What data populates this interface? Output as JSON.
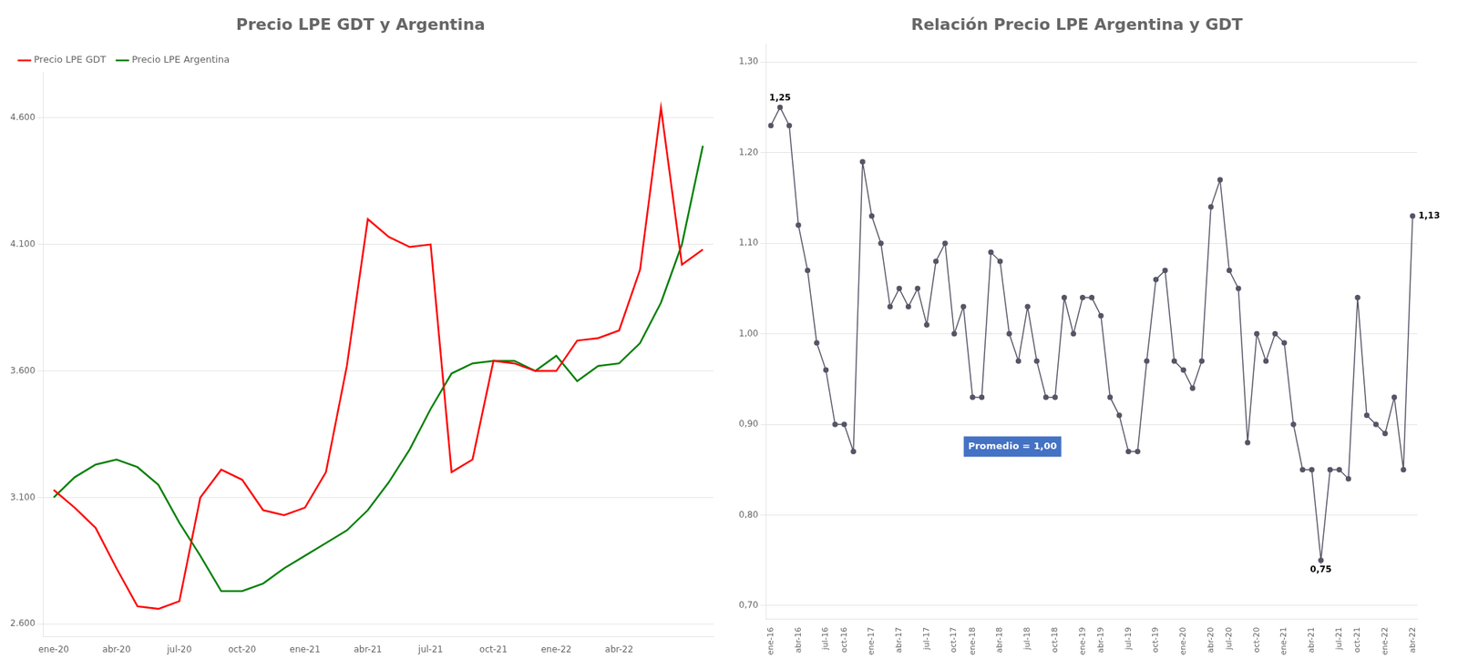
{
  "chart_data": [
    {
      "type": "line",
      "title": "Precio LPE GDT y Argentina",
      "categories": [
        "ene-20",
        null,
        null,
        "abr-20",
        null,
        null,
        "jul-20",
        null,
        null,
        "oct-20",
        null,
        null,
        "ene-21",
        null,
        null,
        "abr-21",
        null,
        null,
        "jul-21",
        null,
        null,
        "oct-21",
        null,
        null,
        "ene-22",
        null,
        null,
        "abr-22",
        null,
        null,
        null,
        null
      ],
      "series": [
        {
          "name": "Precio LPE GDT",
          "color": "#FF0000",
          "values": [
            3130,
            3060,
            2980,
            2820,
            2670,
            2660,
            2690,
            3100,
            3210,
            3170,
            3050,
            3030,
            3060,
            3200,
            3620,
            4200,
            4130,
            4090,
            4100,
            3200,
            3250,
            3640,
            3630,
            3600,
            3600,
            3720,
            3730,
            3760,
            4000,
            4640,
            4020,
            4080
          ]
        },
        {
          "name": "Precio LPE Argentina",
          "color": "#008000",
          "values": [
            3100,
            3180,
            3230,
            3250,
            3220,
            3150,
            3000,
            2870,
            2730,
            2730,
            2760,
            2820,
            2870,
            2920,
            2970,
            3050,
            3160,
            3290,
            3450,
            3590,
            3630,
            3640,
            3640,
            3600,
            3660,
            3560,
            3620,
            3630,
            3710,
            3870,
            4100,
            4490
          ]
        }
      ],
      "ylim": [
        2550,
        4780
      ],
      "yticks": [
        {
          "value": 2600,
          "label": "2.600"
        },
        {
          "value": 3100,
          "label": "3.100"
        },
        {
          "value": 3600,
          "label": "3.600"
        },
        {
          "value": 4100,
          "label": "4.100"
        },
        {
          "value": 4600,
          "label": "4.600"
        }
      ],
      "grid": true,
      "legend": "upper left"
    },
    {
      "type": "line",
      "title": "Relación Precio LPE Argentina y GDT",
      "categories": [
        "ene-16",
        null,
        null,
        "abr-16",
        null,
        null,
        "jul-16",
        null,
        "oct-16",
        null,
        null,
        "ene-17",
        null,
        null,
        "abr-17",
        null,
        null,
        "jul-17",
        null,
        null,
        "oct-17",
        null,
        "ene-18",
        null,
        null,
        "abr-18",
        null,
        null,
        "jul-18",
        null,
        null,
        "oct-18",
        null,
        null,
        "ene-19",
        null,
        "abr-19",
        null,
        null,
        "jul-19",
        null,
        null,
        "oct-19",
        null,
        null,
        "ene-20",
        null,
        null,
        "abr-20",
        null,
        "jul-20",
        null,
        null,
        "oct-20",
        null,
        null,
        "ene-21",
        null,
        null,
        "abr-21",
        null,
        null,
        "jul-21",
        null,
        "oct-21",
        null,
        null,
        "ene-22",
        null,
        null,
        "abr-22"
      ],
      "series": [
        {
          "color": "#555566",
          "marker": "circle",
          "values": [
            1.23,
            1.25,
            1.23,
            1.12,
            1.07,
            0.99,
            0.96,
            0.9,
            0.9,
            0.87,
            1.19,
            1.13,
            1.1,
            1.03,
            1.05,
            1.03,
            1.05,
            1.01,
            1.08,
            1.1,
            1.0,
            1.03,
            0.93,
            0.93,
            1.09,
            1.08,
            1.0,
            0.97,
            1.03,
            0.97,
            0.93,
            0.93,
            1.04,
            1.0,
            1.04,
            1.04,
            1.02,
            0.93,
            0.91,
            0.87,
            0.87,
            0.97,
            1.06,
            1.07,
            0.97,
            0.96,
            0.94,
            0.97,
            1.14,
            1.17,
            1.07,
            1.05,
            0.88,
            1.0,
            0.97,
            1.0,
            0.99,
            0.9,
            0.85,
            0.85,
            0.75,
            0.85,
            0.85,
            0.84,
            1.04,
            0.91,
            0.9,
            0.89,
            0.93,
            0.85,
            1.13
          ]
        }
      ],
      "ylim": [
        0.685,
        1.32
      ],
      "yticks": [
        {
          "value": 0.7,
          "label": "0,70"
        },
        {
          "value": 0.8,
          "label": "0,80"
        },
        {
          "value": 0.9,
          "label": "0,90"
        },
        {
          "value": 1.0,
          "label": "1,00"
        },
        {
          "value": 1.1,
          "label": "1,10"
        },
        {
          "value": 1.2,
          "label": "1,20"
        },
        {
          "value": 1.3,
          "label": "1,30"
        }
      ],
      "grid": true,
      "annotations": [
        {
          "text": "1,25",
          "index": 1,
          "value": 1.25
        },
        {
          "text": "0,75",
          "index": 60,
          "value": 0.75
        },
        {
          "text": "1,13",
          "index": 70,
          "value": 1.13
        },
        {
          "text": "Promedio = 1,00",
          "color": "#4472C4"
        }
      ]
    }
  ]
}
